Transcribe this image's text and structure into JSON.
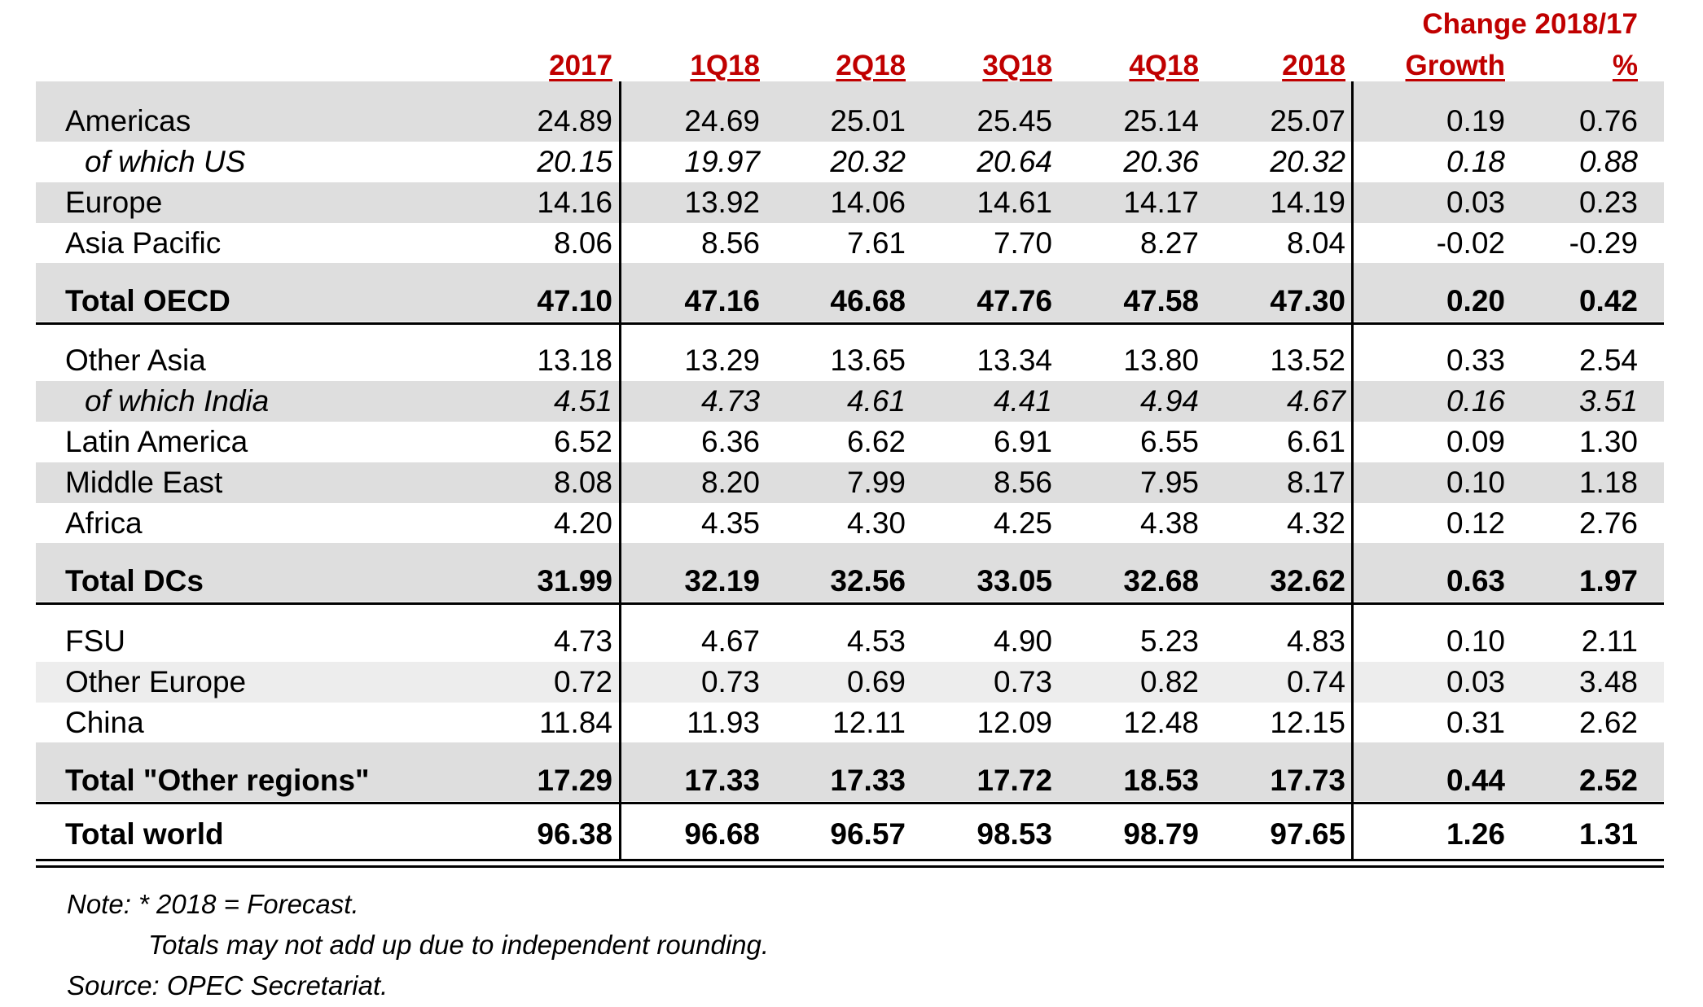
{
  "chart_data": {
    "type": "table",
    "super_header": "Change 2018/17",
    "columns": [
      "2017",
      "1Q18",
      "2Q18",
      "3Q18",
      "4Q18",
      "2018",
      "Growth",
      "%"
    ],
    "rows": [
      {
        "label": "Americas",
        "values": [
          "24.89",
          "24.69",
          "25.01",
          "25.45",
          "25.14",
          "25.07",
          "0.19",
          "0.76"
        ],
        "style": "normal"
      },
      {
        "label": "of which US",
        "values": [
          "20.15",
          "19.97",
          "20.32",
          "20.64",
          "20.36",
          "20.32",
          "0.18",
          "0.88"
        ],
        "style": "italic"
      },
      {
        "label": "Europe",
        "values": [
          "14.16",
          "13.92",
          "14.06",
          "14.61",
          "14.17",
          "14.19",
          "0.03",
          "0.23"
        ],
        "style": "normal"
      },
      {
        "label": "Asia Pacific",
        "values": [
          "8.06",
          "8.56",
          "7.61",
          "7.70",
          "8.27",
          "8.04",
          "-0.02",
          "-0.29"
        ],
        "style": "normal"
      },
      {
        "label": "Total OECD",
        "values": [
          "47.10",
          "47.16",
          "46.68",
          "47.76",
          "47.58",
          "47.30",
          "0.20",
          "0.42"
        ],
        "style": "total"
      },
      {
        "label": "Other Asia",
        "values": [
          "13.18",
          "13.29",
          "13.65",
          "13.34",
          "13.80",
          "13.52",
          "0.33",
          "2.54"
        ],
        "style": "normal"
      },
      {
        "label": "of which India",
        "values": [
          "4.51",
          "4.73",
          "4.61",
          "4.41",
          "4.94",
          "4.67",
          "0.16",
          "3.51"
        ],
        "style": "italic"
      },
      {
        "label": "Latin America",
        "values": [
          "6.52",
          "6.36",
          "6.62",
          "6.91",
          "6.55",
          "6.61",
          "0.09",
          "1.30"
        ],
        "style": "normal"
      },
      {
        "label": "Middle East",
        "values": [
          "8.08",
          "8.20",
          "7.99",
          "8.56",
          "7.95",
          "8.17",
          "0.10",
          "1.18"
        ],
        "style": "normal"
      },
      {
        "label": "Africa",
        "values": [
          "4.20",
          "4.35",
          "4.30",
          "4.25",
          "4.38",
          "4.32",
          "0.12",
          "2.76"
        ],
        "style": "normal"
      },
      {
        "label": "Total DCs",
        "values": [
          "31.99",
          "32.19",
          "32.56",
          "33.05",
          "32.68",
          "32.62",
          "0.63",
          "1.97"
        ],
        "style": "total"
      },
      {
        "label": "FSU",
        "values": [
          "4.73",
          "4.67",
          "4.53",
          "4.90",
          "5.23",
          "4.83",
          "0.10",
          "2.11"
        ],
        "style": "normal"
      },
      {
        "label": "Other Europe",
        "values": [
          "0.72",
          "0.73",
          "0.69",
          "0.73",
          "0.82",
          "0.74",
          "0.03",
          "3.48"
        ],
        "style": "normal"
      },
      {
        "label": "China",
        "values": [
          "11.84",
          "11.93",
          "12.11",
          "12.09",
          "12.48",
          "12.15",
          "0.31",
          "2.62"
        ],
        "style": "normal"
      },
      {
        "label": "Total \"Other regions\"",
        "values": [
          "17.29",
          "17.33",
          "17.33",
          "17.72",
          "18.53",
          "17.73",
          "0.44",
          "2.52"
        ],
        "style": "total"
      },
      {
        "label": "Total world",
        "values": [
          "96.38",
          "96.68",
          "96.57",
          "98.53",
          "98.79",
          "97.65",
          "1.26",
          "1.31"
        ],
        "style": "total"
      }
    ],
    "notes": [
      "Note: * 2018 = Forecast.",
      "Totals may not add up due to independent rounding.",
      "Source: OPEC Secretariat."
    ],
    "header_color": "#c00000",
    "band_color": "#dedede"
  }
}
